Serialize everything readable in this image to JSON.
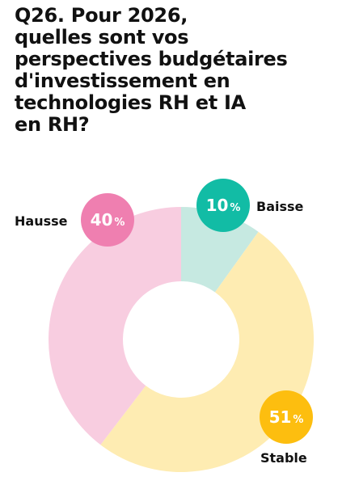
{
  "title_lines": [
    "Q26. Pour 2026,",
    "quelles sont vos",
    "perspectives budgétaires",
    "d'investissement en",
    "technologies RH et IA",
    "en RH?"
  ],
  "chart_data": {
    "type": "pie",
    "donut": true,
    "title": "Q26. Pour 2026, quelles sont vos perspectives budgétaires d'investissement en technologies RH et IA en RH?",
    "legend_placement": "labels-outside-slices",
    "slices": [
      {
        "label": "Baisse",
        "value": 10,
        "display": "10",
        "unit": "%",
        "slice_color": "#c6e9e1",
        "badge_color": "#12bca5"
      },
      {
        "label": "Stable",
        "value": 51,
        "display": "51",
        "unit": "%",
        "slice_color": "#feecb2",
        "badge_color": "#fdbe0f"
      },
      {
        "label": "Hausse",
        "value": 40,
        "display": "40",
        "unit": "%",
        "slice_color": "#f8cde0",
        "badge_color": "#ef7fb0"
      }
    ]
  }
}
